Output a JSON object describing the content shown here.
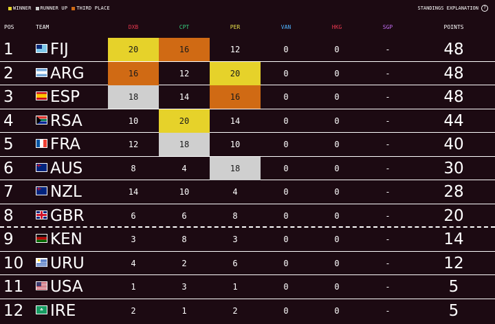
{
  "legend": [
    {
      "label": "Winner",
      "color": "#e6d22a"
    },
    {
      "label": "Runner up",
      "color": "#cfcfcf"
    },
    {
      "label": "Third place",
      "color": "#d06a14"
    }
  ],
  "explanation_label": "Standings explanation",
  "explanation_icon": "question-icon",
  "headers": {
    "pos": "POS",
    "team": "TEAM",
    "points": "POINTS",
    "events": [
      {
        "label": "DXB",
        "color": "#e8384f"
      },
      {
        "label": "CPT",
        "color": "#35d07f"
      },
      {
        "label": "PER",
        "color": "#e6e04a"
      },
      {
        "label": "VAN",
        "color": "#4fb3ff"
      },
      {
        "label": "HKG",
        "color": "#e8384f"
      },
      {
        "label": "SGP",
        "color": "#c06cf0"
      }
    ]
  },
  "medal_colors": {
    "gold": "#e6d22a",
    "silver": "#cfcfcf",
    "bronze": "#d06a14"
  },
  "rows": [
    {
      "pos": "1",
      "team": "FIJ",
      "flag": "flag-fiji",
      "scores": [
        "20",
        "16",
        "12",
        "0",
        "0",
        "-"
      ],
      "medals": [
        "gold",
        "bronze",
        "",
        "",
        "",
        ""
      ],
      "points": "48"
    },
    {
      "pos": "2",
      "team": "ARG",
      "flag": "flag-argentina",
      "scores": [
        "16",
        "12",
        "20",
        "0",
        "0",
        "-"
      ],
      "medals": [
        "bronze",
        "",
        "gold",
        "",
        "",
        ""
      ],
      "points": "48"
    },
    {
      "pos": "3",
      "team": "ESP",
      "flag": "flag-spain",
      "scores": [
        "18",
        "14",
        "16",
        "0",
        "0",
        "-"
      ],
      "medals": [
        "silver",
        "",
        "bronze",
        "",
        "",
        ""
      ],
      "points": "48"
    },
    {
      "pos": "4",
      "team": "RSA",
      "flag": "flag-south-africa",
      "scores": [
        "10",
        "20",
        "14",
        "0",
        "0",
        "-"
      ],
      "medals": [
        "",
        "gold",
        "",
        "",
        "",
        ""
      ],
      "points": "44"
    },
    {
      "pos": "5",
      "team": "FRA",
      "flag": "flag-france",
      "scores": [
        "12",
        "18",
        "10",
        "0",
        "0",
        "-"
      ],
      "medals": [
        "",
        "silver",
        "",
        "",
        "",
        ""
      ],
      "points": "40"
    },
    {
      "pos": "6",
      "team": "AUS",
      "flag": "flag-australia",
      "scores": [
        "8",
        "4",
        "18",
        "0",
        "0",
        "-"
      ],
      "medals": [
        "",
        "",
        "silver",
        "",
        "",
        ""
      ],
      "points": "30"
    },
    {
      "pos": "7",
      "team": "NZL",
      "flag": "flag-new-zealand",
      "scores": [
        "14",
        "10",
        "4",
        "0",
        "0",
        "-"
      ],
      "medals": [
        "",
        "",
        "",
        "",
        "",
        ""
      ],
      "points": "28"
    },
    {
      "pos": "8",
      "team": "GBR",
      "flag": "flag-great-britain",
      "scores": [
        "6",
        "6",
        "8",
        "0",
        "0",
        "-"
      ],
      "medals": [
        "",
        "",
        "",
        "",
        "",
        ""
      ],
      "points": "20"
    },
    {
      "pos": "9",
      "team": "KEN",
      "flag": "flag-kenya",
      "scores": [
        "3",
        "8",
        "3",
        "0",
        "0",
        "-"
      ],
      "medals": [
        "",
        "",
        "",
        "",
        "",
        ""
      ],
      "points": "14"
    },
    {
      "pos": "10",
      "team": "URU",
      "flag": "flag-uruguay",
      "scores": [
        "4",
        "2",
        "6",
        "0",
        "0",
        "-"
      ],
      "medals": [
        "",
        "",
        "",
        "",
        "",
        ""
      ],
      "points": "12"
    },
    {
      "pos": "11",
      "team": "USA",
      "flag": "flag-usa",
      "scores": [
        "1",
        "3",
        "1",
        "0",
        "0",
        "-"
      ],
      "medals": [
        "",
        "",
        "",
        "",
        "",
        ""
      ],
      "points": "5"
    },
    {
      "pos": "12",
      "team": "IRE",
      "flag": "flag-ireland",
      "scores": [
        "2",
        "1",
        "2",
        "0",
        "0",
        "-"
      ],
      "medals": [
        "",
        "",
        "",
        "",
        "",
        ""
      ],
      "points": "5"
    }
  ]
}
